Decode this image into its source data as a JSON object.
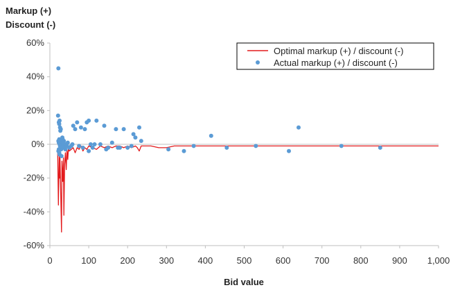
{
  "chart_data": {
    "type": "scatter",
    "ylabel_lines": [
      "Markup (+)",
      "Discount (-)"
    ],
    "xlabel": "Bid value",
    "xlim": [
      0,
      1000
    ],
    "ylim": [
      -60,
      60
    ],
    "x_ticks": [
      0,
      100,
      200,
      300,
      400,
      500,
      600,
      700,
      800,
      900,
      1000
    ],
    "x_tick_labels": [
      "0",
      "100",
      "200",
      "300",
      "400",
      "500",
      "600",
      "700",
      "800",
      "900",
      "1,000"
    ],
    "y_ticks": [
      -60,
      -40,
      -20,
      0,
      20,
      40,
      60
    ],
    "y_tick_labels": [
      "-60%",
      "-40%",
      "-20%",
      "0%",
      "20%",
      "40%",
      "60%"
    ],
    "grid": false,
    "legend": "top-right",
    "colors": {
      "line": "#e31a1c",
      "points": "#5b9bd5",
      "axis": "#bfbfbf"
    },
    "series": [
      {
        "name": "Optimal markup (+) / discount (-)",
        "kind": "line",
        "x": [
          20,
          22,
          24,
          25,
          26,
          28,
          30,
          31,
          33,
          35,
          36,
          38,
          40,
          42,
          44,
          46,
          48,
          50,
          55,
          60,
          65,
          70,
          75,
          80,
          85,
          90,
          95,
          100,
          110,
          120,
          130,
          140,
          150,
          160,
          170,
          180,
          190,
          200,
          210,
          220,
          225,
          230,
          235,
          240,
          260,
          280,
          300,
          320,
          350,
          380,
          400,
          420,
          450,
          480,
          500,
          530,
          560,
          600,
          620,
          650,
          700,
          750,
          800,
          850,
          900,
          950,
          1000
        ],
        "y": [
          -3,
          -36,
          -5,
          -20,
          -8,
          -30,
          -52,
          -10,
          -22,
          -8,
          -42,
          -12,
          -5,
          -15,
          -3,
          -9,
          -2,
          -4,
          -3,
          -2,
          -5,
          -2,
          -3,
          -1,
          -4,
          -2,
          -3,
          -1,
          -2,
          -3,
          -1,
          -2,
          -1,
          -2,
          -1,
          -1,
          -2,
          -1,
          -2,
          -1,
          -2,
          -4,
          -1,
          -1,
          -1,
          -2,
          -2,
          -1,
          -1,
          -1,
          -1,
          -1,
          -1,
          -1,
          -1,
          -1,
          -1,
          -1,
          -1,
          -1,
          -1,
          -1,
          -1,
          -1,
          -1,
          -1,
          -1
        ]
      },
      {
        "name": "Actual markup (+) / discount (-)",
        "kind": "scatter",
        "x": [
          22,
          21,
          23,
          24,
          25,
          26,
          27,
          28,
          22,
          23,
          24,
          25,
          26,
          27,
          28,
          29,
          30,
          31,
          32,
          33,
          34,
          35,
          36,
          37,
          38,
          22,
          23,
          24,
          25,
          30,
          32,
          34,
          36,
          40,
          42,
          44,
          46,
          50,
          55,
          58,
          60,
          65,
          70,
          75,
          80,
          85,
          90,
          95,
          100,
          100,
          105,
          110,
          115,
          120,
          130,
          140,
          145,
          150,
          160,
          170,
          175,
          180,
          190,
          200,
          210,
          215,
          220,
          230,
          235,
          305,
          345,
          370,
          415,
          455,
          530,
          615,
          640,
          750,
          850
        ],
        "y": [
          45,
          17,
          13,
          12,
          14,
          10,
          8,
          9,
          2,
          1,
          3,
          0,
          -1,
          -2,
          2,
          -3,
          -1,
          0,
          1,
          3,
          0,
          -1,
          2,
          -2,
          0,
          -4,
          -3,
          -5,
          -6,
          -7,
          4,
          1,
          -2,
          -3,
          0,
          -1,
          1,
          -2,
          -1,
          0,
          11,
          9,
          13,
          -1,
          10,
          -2,
          9,
          13,
          -4,
          14,
          0,
          -2,
          0,
          14,
          0,
          11,
          -3,
          -2,
          1,
          9,
          -2,
          -2,
          9,
          -2,
          -1,
          6,
          4,
          10,
          2,
          -3,
          -4,
          -1,
          5,
          -2,
          -1,
          -4,
          10,
          -1,
          -2
        ]
      }
    ]
  }
}
